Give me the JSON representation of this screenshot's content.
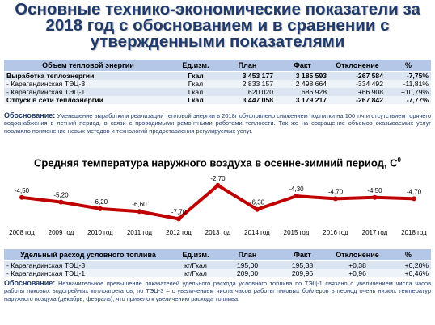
{
  "title_lines": [
    "Основные технико-экономические показатели за",
    "2018 год с обоснованием и в сравнении с",
    "утвержденными показателями"
  ],
  "table1": {
    "headers": [
      "Объем тепловой энергии",
      "Ед.изм.",
      "План",
      "Факт",
      "Отклонение",
      "%"
    ],
    "rows": [
      {
        "name": "Выработка теплоэнергии",
        "unit": "Гкал",
        "plan": "3 453 177",
        "fact": "3 185 593",
        "dev": "-267 584",
        "pct": "-7,75%",
        "bold": true
      },
      {
        "name": "- Карагандинская ТЭЦ-3",
        "unit": "Гкал",
        "plan": "2 833 157",
        "fact": "2 498 664",
        "dev": "-334 492",
        "pct": "-11,81%",
        "bold": false
      },
      {
        "name": "- Карагандинская ТЭЦ-1",
        "unit": "Гкал",
        "plan": "620 020",
        "fact": "686 928",
        "dev": "+66 908",
        "pct": "+10,79%",
        "bold": false
      },
      {
        "name": "Отпуск в сети теплоэнергии",
        "unit": "Гкал",
        "plan": "3 447 058",
        "fact": "3 179 217",
        "dev": "-267 842",
        "pct": "-7,77%",
        "bold": true
      }
    ]
  },
  "note1": {
    "label": "Обоснование:",
    "text": "Уменьшение выработки и реализации тепловой энергии в 2018г обусловлено снижением подпитки на 100 т/ч и отсутствием горячего водоснабжения в летний период, в связи с проводимыми ремонтными работами теплосети. Так же на сокращение объемов оказываемых услуг повлияло применение новых методов и технологий предоставления регулируемых услуг."
  },
  "chart_title": "Средняя температура наружного воздуха в осенне-зимний период, С",
  "chart_title_sup": "0",
  "chart_data": {
    "type": "line",
    "title": "Средняя температура наружного воздуха в осенне-зимний период, С0",
    "categories": [
      "2008 год",
      "2009 год",
      "2010 год",
      "2011 год",
      "2012 год",
      "2013 год",
      "2014 год",
      "2015 год",
      "2016 год",
      "2017 год",
      "2018 год"
    ],
    "values": [
      -4.5,
      -5.2,
      -6.2,
      -6.6,
      -7.7,
      -2.7,
      -6.3,
      -4.3,
      -4.7,
      -4.5,
      -4.7
    ],
    "value_labels": [
      "-4,50",
      "-5,20",
      "-6,20",
      "-6,60",
      "-7,70",
      "-2,70",
      "-6,30",
      "-4,30",
      "-4,70",
      "-4,50",
      "-4,70"
    ],
    "ylim": [
      -8.5,
      -2.0
    ],
    "line_color": "#c00000",
    "marker_color": "#c00000",
    "grid": false,
    "legend": false
  },
  "table2": {
    "headers": [
      "Удельный расход условного топлива",
      "Ед.изм.",
      "План",
      "Факт",
      "Отклонение",
      "%"
    ],
    "rows": [
      {
        "name": "- Карагандинская ТЭЦ-3",
        "unit": "кг/Гкал",
        "plan": "195,00",
        "fact": "195,38",
        "dev": "+0,38",
        "pct": "+0,20%"
      },
      {
        "name": "- Карагандинская ТЭЦ-1",
        "unit": "кг/Гкал",
        "plan": "209,00",
        "fact": "209,96",
        "dev": "+0,96",
        "pct": "+0,46%"
      }
    ]
  },
  "note2": {
    "label": "Обоснование:",
    "text": "Незначительное превышение показателей удельного расхода условного топлива по ТЭЦ-1 связано с увеличением числа часов работы пиковых водогрейных котлоагрегатов, по ТЭЦ-3 – с увеличением числа часов работы пиковых бойлеров в период очень низких температур наружного воздуха (декабрь, февраль), что привело к увеличению расхода топлива."
  }
}
